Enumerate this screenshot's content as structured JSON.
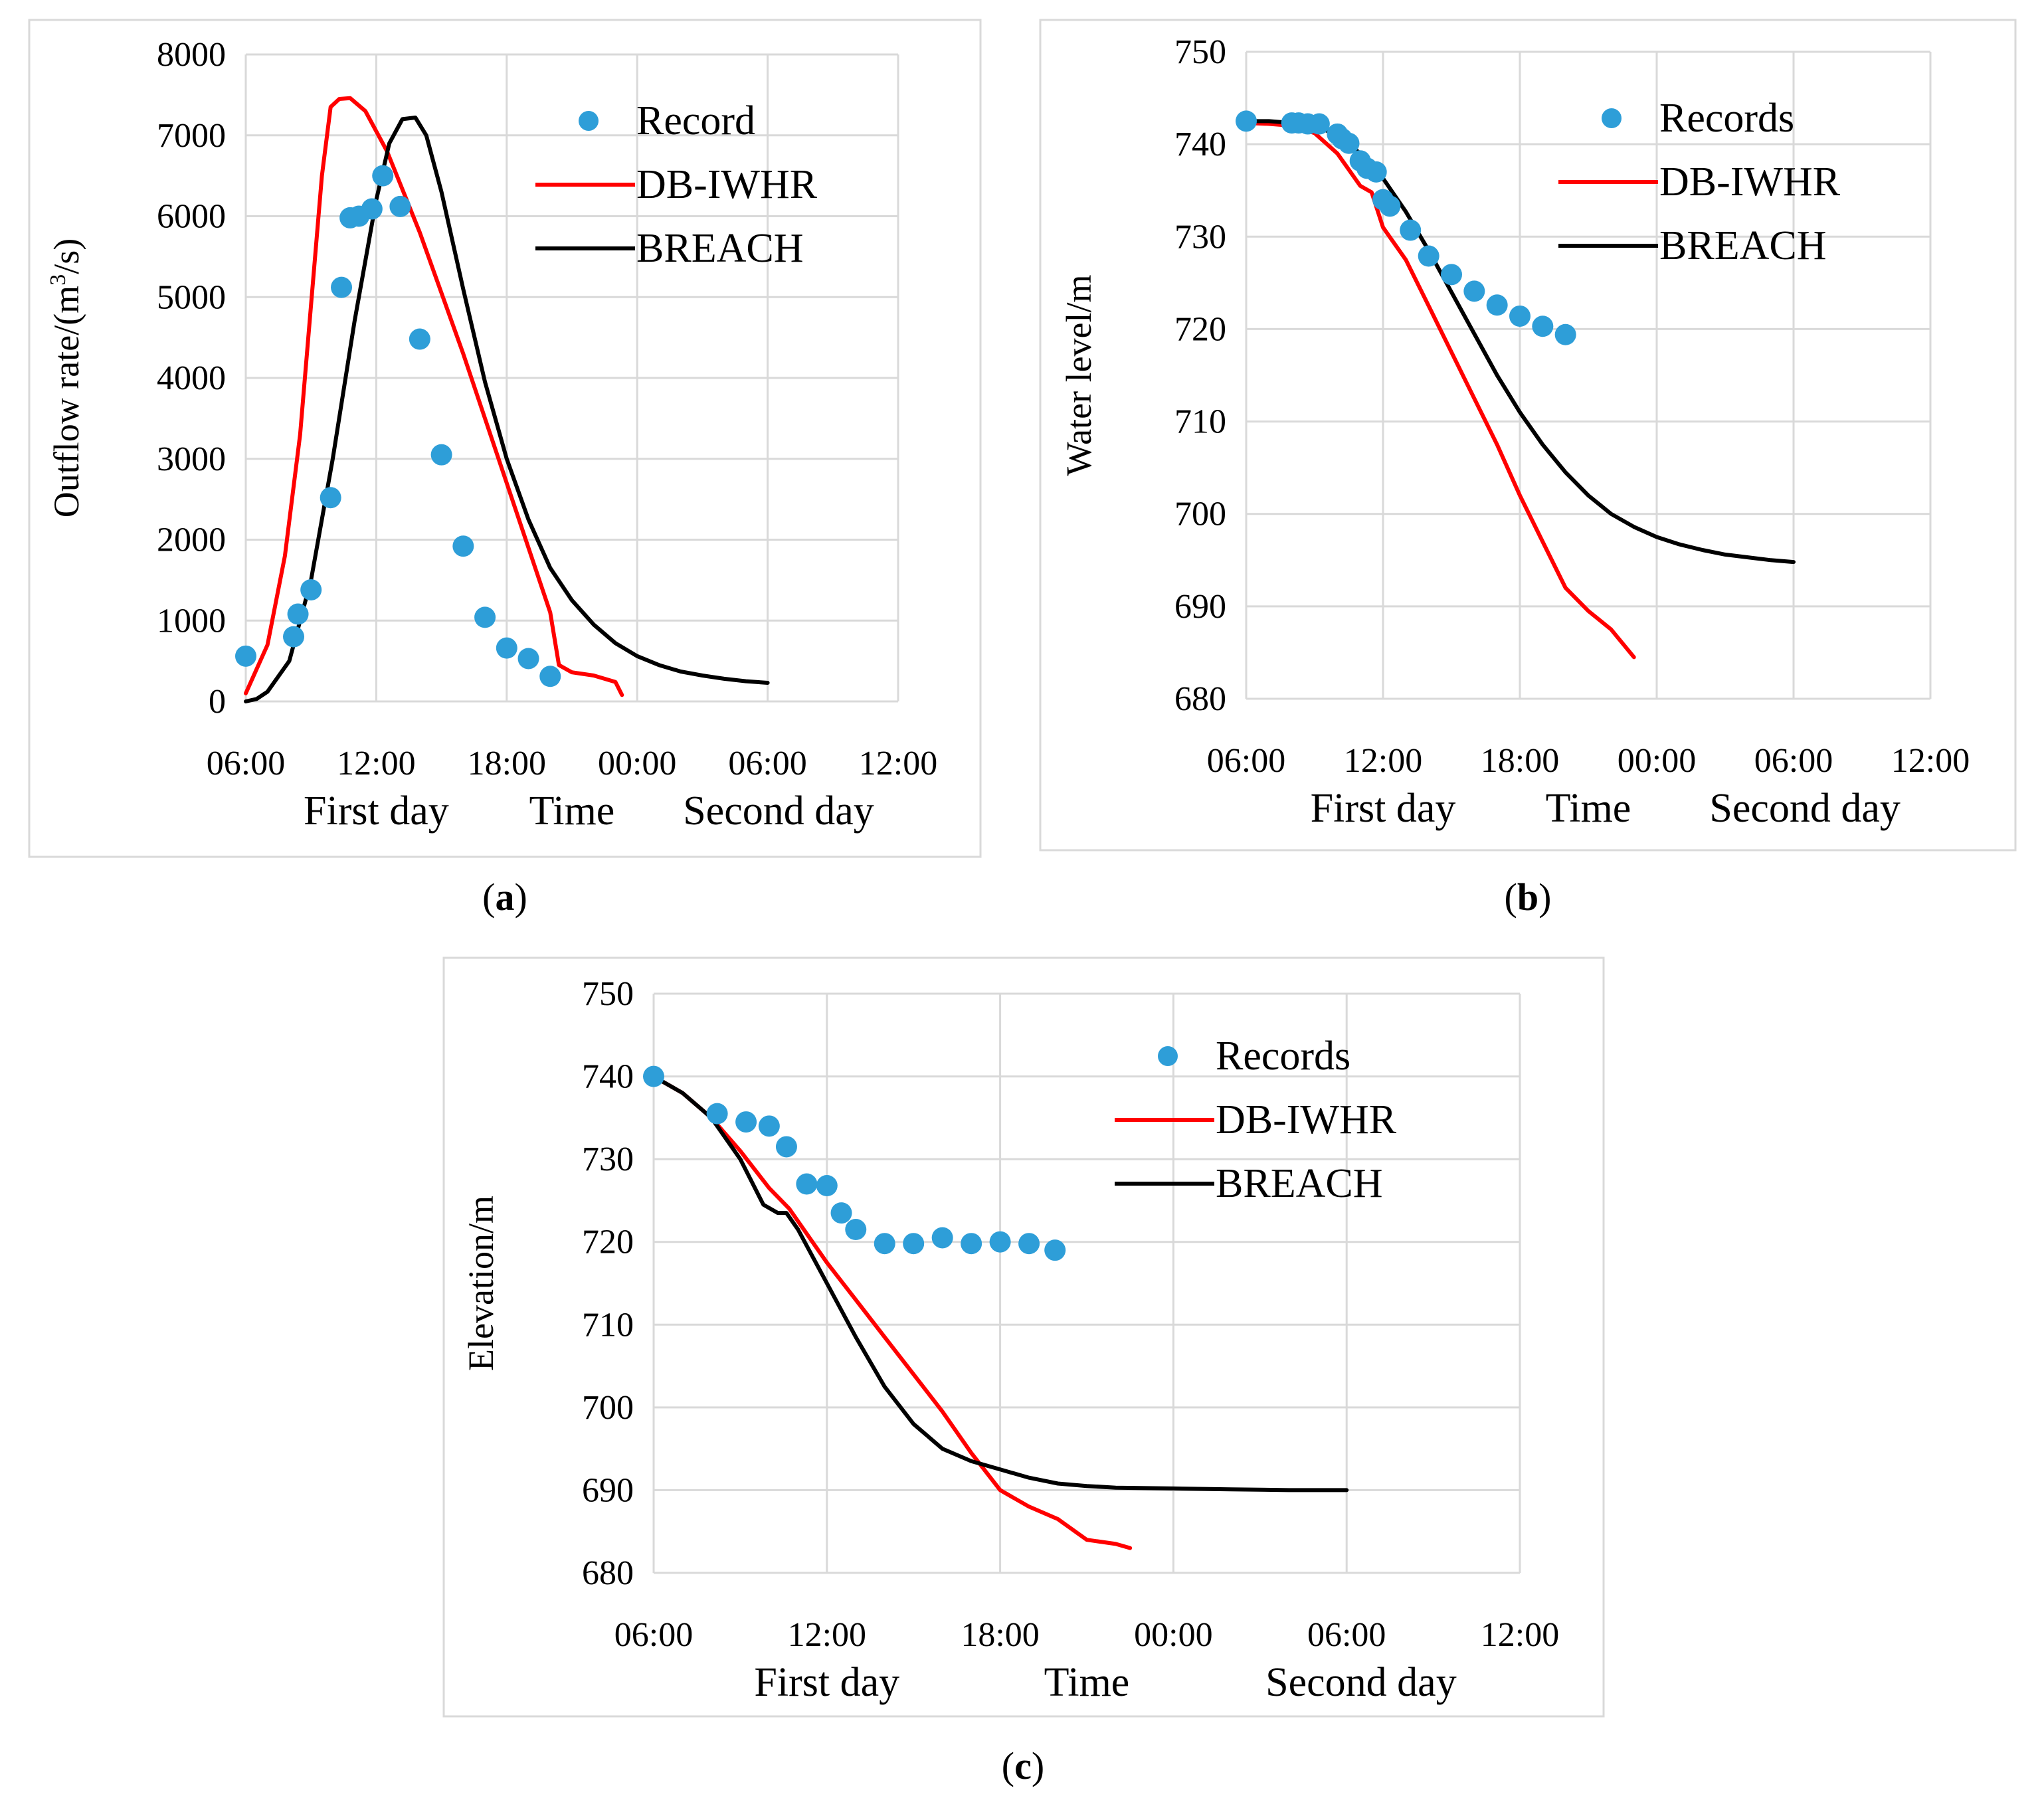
{
  "figure": {
    "colors": {
      "record": "#2e9ed8",
      "db_iwhr": "#ff0000",
      "breach": "#000000",
      "grid": "#d9d9d9"
    }
  },
  "chart_data": [
    {
      "type": "line",
      "panel_label": "(a)",
      "caption": {
        "open": "(",
        "letter": "a",
        "close": ")"
      },
      "ylabel": "Outflow rate/(m³/s)",
      "ylabel_parts": {
        "pre": "Outflow rate/(m",
        "sup": "3",
        "post": "/s)"
      },
      "ylim": [
        0,
        8000
      ],
      "yticks": [
        0,
        1000,
        2000,
        3000,
        4000,
        5000,
        6000,
        7000,
        8000
      ],
      "ytick_labels": [
        "0",
        "1000",
        "2000",
        "3000",
        "4000",
        "5000",
        "6000",
        "7000",
        "8000"
      ],
      "xlabel": "Time",
      "xlim": [
        6,
        36
      ],
      "xticks": [
        6,
        12,
        18,
        24,
        30,
        36
      ],
      "xtick_labels": [
        "06:00",
        "12:00",
        "18:00",
        "00:00",
        "06:00",
        "12:00"
      ],
      "day_labels": [
        "First day",
        "Second day"
      ],
      "legend": [
        "Record",
        "DB-IWHR",
        "BREACH"
      ],
      "series": [
        {
          "name": "Record",
          "kind": "scatter",
          "x": [
            6.0,
            8.2,
            8.4,
            9.0,
            9.9,
            10.4,
            10.8,
            11.2,
            11.8,
            12.3,
            13.1,
            14.0,
            15.0,
            16.0,
            17.0,
            18.0,
            19.0,
            20.0
          ],
          "y": [
            560,
            800,
            1080,
            1380,
            2520,
            5120,
            5980,
            6000,
            6090,
            6500,
            6120,
            4480,
            3050,
            1920,
            1040,
            660,
            530,
            310
          ]
        },
        {
          "name": "DB-IWHR",
          "kind": "line",
          "x": [
            6.0,
            7.0,
            7.8,
            8.5,
            9.0,
            9.5,
            9.9,
            10.3,
            10.8,
            11.5,
            12.5,
            14.0,
            16.0,
            18.0,
            20.0,
            20.4,
            21.0,
            22.0,
            23.0,
            23.3
          ],
          "y": [
            100,
            700,
            1800,
            3300,
            4900,
            6500,
            7350,
            7450,
            7460,
            7300,
            6800,
            5800,
            4300,
            2700,
            1100,
            450,
            360,
            320,
            240,
            80
          ]
        },
        {
          "name": "BREACH",
          "kind": "line",
          "x": [
            6.0,
            6.5,
            7.0,
            8.0,
            9.0,
            10.0,
            11.0,
            12.0,
            12.6,
            13.2,
            13.8,
            14.3,
            15.0,
            16.0,
            17.0,
            18.0,
            19.0,
            20.0,
            21.0,
            22.0,
            23.0,
            24.0,
            25.0,
            26.0,
            27.0,
            28.0,
            29.0,
            30.0
          ],
          "y": [
            0,
            30,
            120,
            500,
            1500,
            3000,
            4700,
            6200,
            6900,
            7200,
            7220,
            7000,
            6300,
            5100,
            3950,
            3000,
            2250,
            1650,
            1250,
            950,
            720,
            560,
            450,
            370,
            320,
            280,
            250,
            230
          ]
        }
      ]
    },
    {
      "type": "line",
      "panel_label": "(b)",
      "caption": {
        "open": "(",
        "letter": "b",
        "close": ")"
      },
      "ylabel": "Water level/m",
      "ylim": [
        680,
        750
      ],
      "yticks": [
        680,
        690,
        700,
        710,
        720,
        730,
        740,
        750
      ],
      "ytick_labels": [
        "680",
        "690",
        "700",
        "710",
        "720",
        "730",
        "740",
        "750"
      ],
      "xlabel": "Time",
      "xlim": [
        6,
        36
      ],
      "xticks": [
        6,
        12,
        18,
        24,
        30,
        36
      ],
      "xtick_labels": [
        "06:00",
        "12:00",
        "18:00",
        "00:00",
        "06:00",
        "12:00"
      ],
      "day_labels": [
        "First day",
        "Second day"
      ],
      "legend": [
        "Records",
        "DB-IWHR",
        "BREACH"
      ],
      "series": [
        {
          "name": "Records",
          "kind": "scatter",
          "x": [
            6.0,
            8.0,
            8.3,
            8.7,
            9.2,
            10.0,
            10.2,
            10.5,
            11.0,
            11.3,
            11.7,
            12.0,
            12.3,
            13.2,
            14.0,
            15.0,
            16.0,
            17.0,
            18.0,
            19.0,
            20.0
          ],
          "y": [
            742.5,
            742.3,
            742.3,
            742.2,
            742.2,
            741.1,
            740.6,
            740.1,
            738.2,
            737.4,
            737.0,
            734.0,
            733.3,
            730.7,
            727.9,
            725.9,
            724.1,
            722.6,
            721.4,
            720.3,
            719.4
          ]
        },
        {
          "name": "DB-IWHR",
          "kind": "line",
          "x": [
            6.0,
            7.0,
            8.0,
            9.0,
            10.0,
            11.0,
            11.5,
            12.0,
            13.0,
            14.0,
            15.0,
            16.0,
            17.0,
            18.0,
            19.0,
            20.0,
            21.0,
            21.5,
            22.0,
            22.5,
            23.0
          ],
          "y": [
            742.3,
            742.2,
            742.0,
            741.2,
            739.0,
            735.5,
            734.8,
            731.0,
            727.5,
            722.5,
            717.5,
            712.5,
            707.5,
            702.0,
            697.0,
            692.0,
            689.5,
            688.5,
            687.5,
            686.0,
            684.5
          ]
        },
        {
          "name": "BREACH",
          "kind": "line",
          "x": [
            6.0,
            7.0,
            8.0,
            9.0,
            10.0,
            11.0,
            12.0,
            13.0,
            14.0,
            15.0,
            16.0,
            17.0,
            18.0,
            19.0,
            20.0,
            21.0,
            22.0,
            23.0,
            24.0,
            25.0,
            26.0,
            27.0,
            28.0,
            29.0,
            30.0
          ],
          "y": [
            742.5,
            742.5,
            742.3,
            742.0,
            741.0,
            739.0,
            736.3,
            732.7,
            728.5,
            724.0,
            719.5,
            715.0,
            711.0,
            707.5,
            704.5,
            702.0,
            700.0,
            698.6,
            697.5,
            696.7,
            696.1,
            695.6,
            695.3,
            695.0,
            694.8
          ]
        }
      ]
    },
    {
      "type": "line",
      "panel_label": "(c)",
      "caption": {
        "open": "(",
        "letter": "c",
        "close": ")"
      },
      "ylabel": "Elevation/m",
      "ylim": [
        680,
        750
      ],
      "yticks": [
        680,
        690,
        700,
        710,
        720,
        730,
        740,
        750
      ],
      "ytick_labels": [
        "680",
        "690",
        "700",
        "710",
        "720",
        "730",
        "740",
        "750"
      ],
      "xlabel": "Time",
      "xlim": [
        6,
        36
      ],
      "xticks": [
        6,
        12,
        18,
        24,
        30,
        36
      ],
      "xtick_labels": [
        "06:00",
        "12:00",
        "18:00",
        "00:00",
        "06:00",
        "12:00"
      ],
      "day_labels": [
        "First day",
        "Second day"
      ],
      "legend": [
        "Records",
        "DB-IWHR",
        "BREACH"
      ],
      "series": [
        {
          "name": "Records",
          "kind": "scatter",
          "x": [
            6.0,
            8.2,
            9.2,
            10.0,
            10.6,
            11.3,
            12.0,
            12.5,
            13.0,
            14.0,
            15.0,
            16.0,
            17.0,
            18.0,
            19.0,
            19.9
          ],
          "y": [
            740,
            735.5,
            734.5,
            734.0,
            731.5,
            727,
            726.8,
            723.5,
            721.5,
            719.8,
            719.8,
            720.5,
            719.8,
            720.0,
            719.8,
            719.0
          ]
        },
        {
          "name": "DB-IWHR",
          "kind": "line",
          "x": [
            6.0,
            7.0,
            8.0,
            9.0,
            10.0,
            10.7,
            11.0,
            12.0,
            13.0,
            14.0,
            15.0,
            16.0,
            17.0,
            18.0,
            19.0,
            20.0,
            21.0,
            22.0,
            22.5
          ],
          "y": [
            740,
            738.0,
            735.0,
            731.0,
            726.5,
            724.0,
            722.5,
            717.5,
            713.0,
            708.5,
            704.0,
            699.5,
            694.5,
            690.0,
            688.0,
            686.5,
            684.0,
            683.5,
            683.0
          ]
        },
        {
          "name": "BREACH",
          "kind": "line",
          "x": [
            6.0,
            7.0,
            8.0,
            9.0,
            9.8,
            10.3,
            10.6,
            11.0,
            12.0,
            13.0,
            14.0,
            15.0,
            16.0,
            17.0,
            18.0,
            19.0,
            20.0,
            21.0,
            22.0,
            24.0,
            26.0,
            28.0,
            30.0
          ],
          "y": [
            740,
            738.0,
            735.0,
            730.0,
            724.5,
            723.5,
            723.5,
            721.5,
            715.0,
            708.5,
            702.5,
            698.0,
            695.0,
            693.5,
            692.5,
            691.5,
            690.8,
            690.5,
            690.3,
            690.2,
            690.1,
            690.0,
            690.0
          ]
        }
      ]
    }
  ]
}
